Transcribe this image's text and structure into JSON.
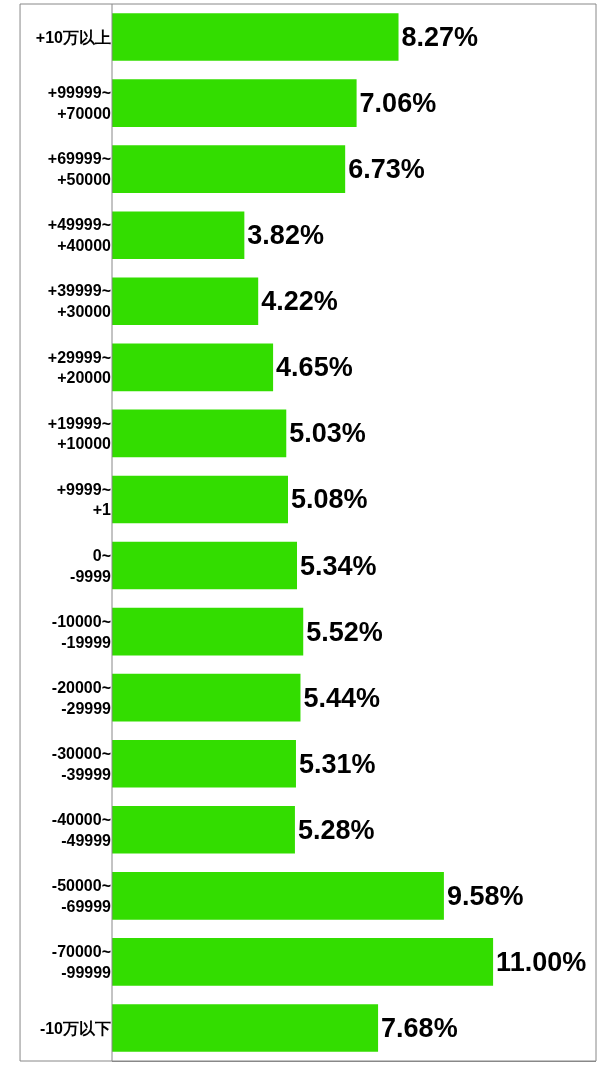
{
  "chart_data": {
    "type": "bar",
    "orientation": "horizontal",
    "color": "#33dd00",
    "categories": [
      "+10万以上",
      "+99999~\n+70000",
      "+69999~\n+50000",
      "+49999~\n+40000",
      "+39999~\n+30000",
      "+29999~\n+20000",
      "+19999~\n+10000",
      "+9999~\n+1",
      "0~\n-9999",
      "-10000~\n-19999",
      "-20000~\n-29999",
      "-30000~\n-39999",
      "-40000~\n-49999",
      "-50000~\n-69999",
      "-70000~\n-99999",
      "-10万以下"
    ],
    "values": [
      8.27,
      7.06,
      6.73,
      3.82,
      4.22,
      4.65,
      5.03,
      5.08,
      5.34,
      5.52,
      5.44,
      5.31,
      5.28,
      9.58,
      11.0,
      7.68
    ],
    "value_labels": [
      "8.27%",
      "7.06%",
      "6.73%",
      "3.82%",
      "4.22%",
      "4.65%",
      "5.03%",
      "5.08%",
      "5.34%",
      "5.52%",
      "5.44%",
      "5.31%",
      "5.28%",
      "9.58%",
      "11.00%",
      "7.68%"
    ],
    "legend": false
  }
}
